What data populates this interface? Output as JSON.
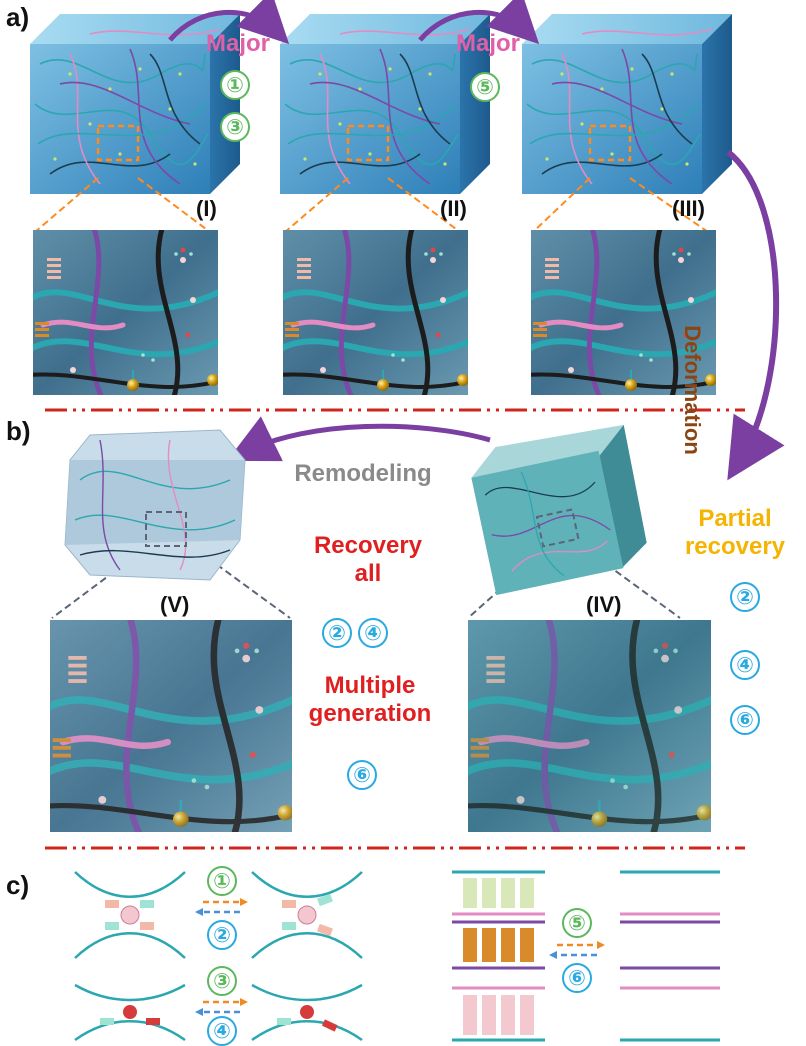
{
  "panels": {
    "a": "a)",
    "b": "b)",
    "c": "c)"
  },
  "states": {
    "I": "(I)",
    "II": "(II)",
    "III": "(III)",
    "IV": "(IV)",
    "V": "(V)"
  },
  "labels": {
    "major_1": "Major",
    "major_2": "Major",
    "deformation": "Deformation",
    "remodeling": "Remodeling",
    "partial_recovery": "Partial recovery",
    "recovery_all": "Recovery all",
    "multiple_generation": "Multiple generation"
  },
  "steps": {
    "s1": "①",
    "s2": "②",
    "s3": "③",
    "s4": "④",
    "s5": "⑤",
    "s6": "⑥"
  },
  "colors": {
    "major": "#e05fa8",
    "green_step": "#5cb85c",
    "blue_step": "#29a9e1",
    "arrow_purple": "#7a3fa0",
    "deformation": "#8b4513",
    "partial": "#f4b400",
    "recovery": "#e02020",
    "remodeling": "#8a8a8a",
    "divider": "#d0251c",
    "teal": "#2aa7b0",
    "pink": "#e38bc3",
    "violet": "#7a4aa6"
  },
  "icons": [
    "chain-network-icon",
    "hydrogel-cube-icon",
    "crosslink-icon",
    "ion-sphere-icon"
  ]
}
